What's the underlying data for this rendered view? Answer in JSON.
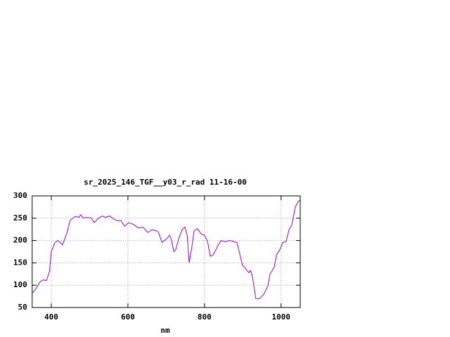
{
  "chart_data": {
    "type": "line",
    "title": "sr_2025_146_TGF__y03_r_rad 11-16-00",
    "x_label": "nm",
    "x": [
      350,
      358,
      371,
      380,
      387,
      395,
      400,
      409,
      417,
      424,
      429,
      440,
      449,
      462,
      472,
      477,
      483,
      490,
      505,
      512,
      523,
      533,
      542,
      552,
      563,
      573,
      582,
      591,
      602,
      615,
      628,
      639,
      652,
      663,
      674,
      680,
      689,
      700,
      709,
      714,
      720,
      725,
      733,
      742,
      749,
      755,
      760,
      766,
      773,
      782,
      791,
      800,
      808,
      815,
      822,
      833,
      843,
      854,
      865,
      876,
      885,
      892,
      899,
      909,
      916,
      920,
      925,
      934,
      944,
      955,
      966,
      971,
      982,
      988,
      997,
      1004,
      1013,
      1021,
      1028,
      1037,
      1045,
      1049
    ],
    "series": [
      {
        "name": null,
        "color": "#9400d3",
        "values": [
          82,
          90,
          108,
          112,
          110,
          130,
          175,
          195,
          200,
          195,
          190,
          215,
          245,
          254,
          252,
          258,
          250,
          252,
          250,
          240,
          250,
          255,
          252,
          255,
          248,
          244,
          245,
          232,
          240,
          236,
          228,
          230,
          218,
          224,
          222,
          218,
          196,
          203,
          212,
          200,
          175,
          180,
          205,
          225,
          230,
          210,
          150,
          180,
          222,
          226,
          215,
          212,
          198,
          165,
          167,
          185,
          200,
          197,
          200,
          198,
          195,
          170,
          145,
          135,
          128,
          133,
          120,
          70,
          70,
          80,
          100,
          125,
          140,
          168,
          180,
          195,
          198,
          225,
          235,
          275,
          288,
          290
        ]
      }
    ],
    "xlim": [
      350,
      1050
    ],
    "ylim": [
      50,
      300
    ],
    "xticks": [
      400,
      600,
      800,
      1000
    ],
    "yticks": [
      50,
      100,
      150,
      200,
      250,
      300
    ],
    "grid": true
  }
}
